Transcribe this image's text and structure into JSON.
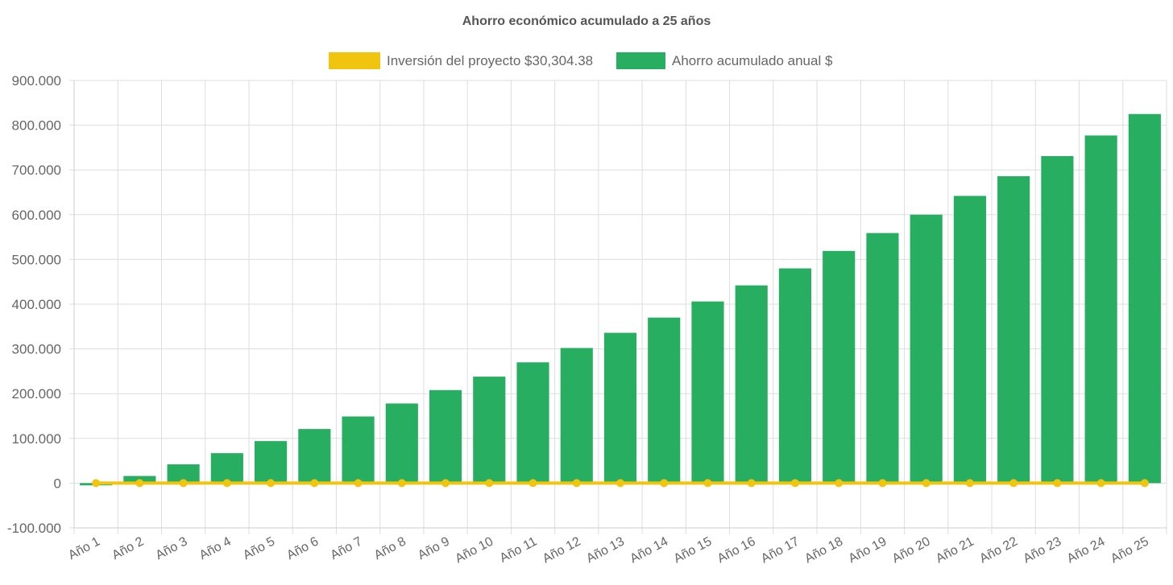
{
  "chart_data": {
    "type": "bar",
    "title": "Ahorro económico acumulado a 25 años",
    "legend_position": "top",
    "grid": true,
    "ylim": [
      -100000,
      900000
    ],
    "y_ticks": [
      900000,
      800000,
      700000,
      600000,
      500000,
      400000,
      300000,
      200000,
      100000,
      0,
      -100000
    ],
    "y_tick_labels": [
      "900.000",
      "800.000",
      "700.000",
      "600.000",
      "500.000",
      "400.000",
      "300.000",
      "200.000",
      "100.000",
      "0",
      "-100.000"
    ],
    "categories": [
      "Año 1",
      "Año 2",
      "Año 3",
      "Año 4",
      "Año 5",
      "Año 6",
      "Año 7",
      "Año 8",
      "Año 9",
      "Año 10",
      "Año 11",
      "Año 12",
      "Año 13",
      "Año 14",
      "Año 15",
      "Año 16",
      "Año 17",
      "Año 18",
      "Año 19",
      "Año 20",
      "Año 21",
      "Año 22",
      "Año 23",
      "Año 24",
      "Año 25"
    ],
    "series": [
      {
        "name": "Inversión del proyecto $30,304.38",
        "type": "line",
        "color": "#f1c40f",
        "values": [
          0,
          0,
          0,
          0,
          0,
          0,
          0,
          0,
          0,
          0,
          0,
          0,
          0,
          0,
          0,
          0,
          0,
          0,
          0,
          0,
          0,
          0,
          0,
          0,
          0
        ]
      },
      {
        "name": "Ahorro acumulado anual $",
        "type": "bar",
        "color": "#27ae60",
        "values": [
          -5000,
          16000,
          42000,
          67000,
          94000,
          121000,
          149000,
          178000,
          208000,
          238000,
          270000,
          302000,
          336000,
          370000,
          406000,
          442000,
          480000,
          519000,
          559000,
          600000,
          642000,
          686000,
          731000,
          777000,
          825000
        ]
      }
    ]
  }
}
